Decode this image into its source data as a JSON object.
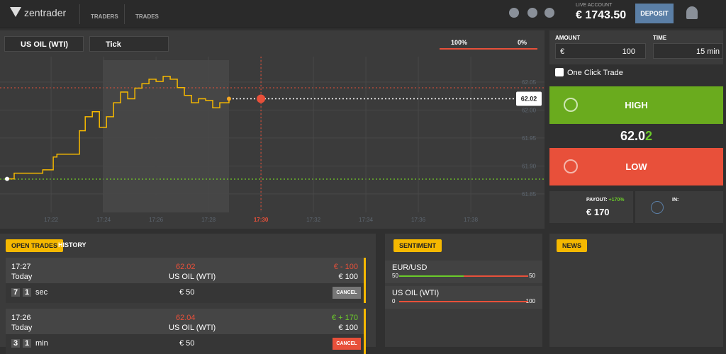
{
  "header": {
    "logo": "zentrader",
    "nav": [
      "TRADERS",
      "TRADES"
    ],
    "account_label": "LIVE ACCOUNT",
    "balance": "€ 1743.50",
    "deposit": "DEPOSIT"
  },
  "toolbar": {
    "asset": "US OIL (WTI)",
    "period": "Tick",
    "down_pct": "100%",
    "up_pct": "0%"
  },
  "price_chart": {
    "ylim": [
      61.817,
      62.089
    ],
    "yticks": [
      62.05,
      {
        "value": 62,
        "label": "62.00"
      },
      61.95,
      {
        "value": 61.9,
        "label": "61.90"
      },
      61.85
    ],
    "xlim": [
      20.05,
      40.81
    ],
    "xticks": [
      {
        "value": 22,
        "label": "17:22"
      },
      {
        "value": 24,
        "label": "17:24"
      },
      {
        "value": 26,
        "label": "17:26"
      },
      {
        "value": 28,
        "label": "17:28"
      },
      {
        "value": 30,
        "label": "17:30"
      },
      {
        "value": 32,
        "label": "17:32"
      },
      {
        "value": 34,
        "label": "17:34"
      },
      {
        "value": 36,
        "label": "17:36"
      },
      {
        "value": 38,
        "label": "17:38"
      }
    ],
    "x": [
      20.32,
      20.59,
      21.14,
      21.68,
      22.08,
      22.22,
      23.03,
      23.08,
      23.3,
      23.57,
      23.84,
      24.11,
      24.38,
      24.65,
      24.92,
      25.19,
      25.46,
      25.73,
      26.0,
      26.27,
      26.54,
      26.81,
      27.08,
      27.35,
      27.62,
      27.89,
      28.16,
      28.43,
      28.78
    ],
    "values": [
      61.877,
      61.887,
      61.887,
      61.893,
      61.916,
      61.921,
      61.921,
      61.963,
      61.988,
      61.997,
      61.969,
      61.988,
      62.013,
      62.032,
      62.02,
      62.039,
      62.047,
      62.055,
      62.051,
      62.06,
      62.055,
      62.04,
      62.026,
      62.013,
      62.02,
      62.017,
      62.004,
      62.013,
      62.02
    ],
    "current_price": {
      "value": 62.02,
      "label": "62.02"
    },
    "color": "#f5b800"
  },
  "trade_panel": {
    "amount_label": "AMOUNT",
    "time_label": "TIME",
    "currency": "€",
    "amount": "100",
    "time": "15 min",
    "one_click": "One Click Trade",
    "high": "HIGH",
    "price_main": "62.0",
    "price_last": "2",
    "low": "LOW",
    "payout_label": "PAYOUT:",
    "payout_pct": "+170%",
    "payout": "€ 170",
    "in_label": "IN:"
  },
  "trades": {
    "tabs": [
      "OPEN TRADES",
      "HISTORY"
    ],
    "rows": [
      {
        "time": "17:27",
        "day": "Today",
        "price": "62.02",
        "asset": "US OIL (WTI)",
        "result": "€ - 100",
        "amount": "€ 100",
        "counter": [
          "7",
          "1"
        ],
        "unit": "sec",
        "stake": "€ 50",
        "button": "CANCEL"
      },
      {
        "time": "17:26",
        "day": "Today",
        "price": "62.04",
        "asset": "US OIL (WTI)",
        "result": "€ + 170",
        "amount": "€ 100",
        "counter": [
          "3",
          "1"
        ],
        "unit": "min",
        "stake": "€ 50",
        "button": "CANCEL"
      }
    ]
  },
  "sentiment": {
    "title": "SENTIMENT",
    "items": [
      {
        "name": "EUR/USD",
        "left": 50,
        "right": 50
      },
      {
        "name": "US OIL (WTI)",
        "left": 0,
        "right": 100
      }
    ]
  },
  "news": {
    "title": "NEWS"
  }
}
